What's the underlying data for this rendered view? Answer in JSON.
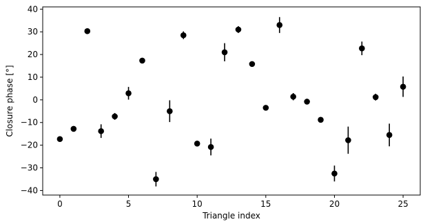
{
  "chart_data": {
    "type": "scatter",
    "title": "",
    "xlabel": "Triangle index",
    "ylabel": "Closure phase [°]",
    "xlim": [
      -1.25,
      26.25
    ],
    "ylim": [
      -42,
      41
    ],
    "xticks": [
      0,
      5,
      10,
      15,
      20,
      25
    ],
    "yticks": [
      -40,
      -30,
      -20,
      -10,
      0,
      10,
      20,
      30,
      40
    ],
    "grid": false,
    "legend": "none",
    "marker_color": "#000000",
    "points": [
      {
        "x": 0,
        "y": -17.3,
        "err": 0.5
      },
      {
        "x": 1,
        "y": -12.8,
        "err": 0.5
      },
      {
        "x": 2,
        "y": 30.3,
        "err": 0.5
      },
      {
        "x": 3,
        "y": -13.8,
        "err": 3.0
      },
      {
        "x": 4,
        "y": -7.3,
        "err": 1.5
      },
      {
        "x": 5,
        "y": 2.9,
        "err": 2.8
      },
      {
        "x": 6,
        "y": 17.3,
        "err": 0.5
      },
      {
        "x": 7,
        "y": -35.0,
        "err": 3.2
      },
      {
        "x": 8,
        "y": -5.0,
        "err": 4.8
      },
      {
        "x": 9,
        "y": 28.5,
        "err": 1.7
      },
      {
        "x": 10,
        "y": -19.3,
        "err": 0.5
      },
      {
        "x": 11,
        "y": -20.8,
        "err": 3.7
      },
      {
        "x": 12,
        "y": 21.0,
        "err": 4.0
      },
      {
        "x": 13,
        "y": 31.0,
        "err": 1.5
      },
      {
        "x": 14,
        "y": 15.8,
        "err": 0.5
      },
      {
        "x": 15,
        "y": -3.5,
        "err": 0.5
      },
      {
        "x": 16,
        "y": 33.0,
        "err": 3.5
      },
      {
        "x": 17,
        "y": 1.4,
        "err": 1.6
      },
      {
        "x": 18,
        "y": -0.8,
        "err": 0.5
      },
      {
        "x": 19,
        "y": -8.8,
        "err": 0.5
      },
      {
        "x": 20,
        "y": -32.5,
        "err": 3.5
      },
      {
        "x": 21,
        "y": -17.8,
        "err": 6.0
      },
      {
        "x": 22,
        "y": 22.7,
        "err": 3.0
      },
      {
        "x": 23,
        "y": 1.2,
        "err": 1.5
      },
      {
        "x": 24,
        "y": -15.5,
        "err": 5.0
      },
      {
        "x": 25,
        "y": 5.8,
        "err": 4.5
      }
    ]
  }
}
